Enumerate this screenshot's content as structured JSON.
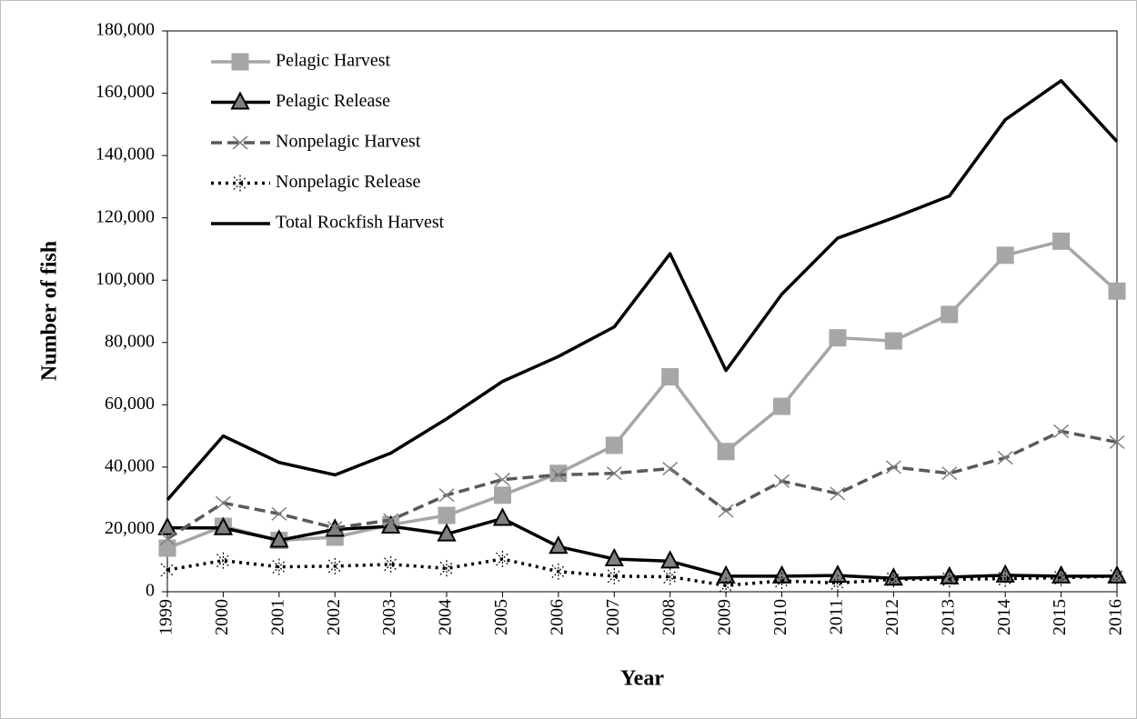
{
  "chart_data": {
    "type": "line",
    "xlabel": "Year",
    "ylabel": "Number of fish",
    "categories": [
      "1999",
      "2000",
      "2001",
      "2002",
      "2003",
      "2004",
      "2005",
      "2006",
      "2007",
      "2008",
      "2009",
      "2010",
      "2011",
      "2012",
      "2013",
      "2014",
      "2015",
      "2016"
    ],
    "ylim": [
      0,
      180000
    ],
    "yticks": [
      0,
      {
        "value": 20000,
        "label": "20,000"
      },
      {
        "value": 40000,
        "label": "40,000"
      },
      {
        "value": 60000,
        "label": "60,000"
      },
      {
        "value": 80000,
        "label": "80,000"
      },
      {
        "value": 100000,
        "label": "100,000"
      },
      {
        "value": 120000,
        "label": "120,000"
      },
      {
        "value": 140000,
        "label": "140,000"
      },
      {
        "value": 160000,
        "label": "160,000"
      },
      {
        "value": 180000,
        "label": "180,000"
      }
    ],
    "grid": false,
    "legend": "upper left",
    "series": [
      {
        "name": "Pelagic Harvest",
        "color": "#a6a6a6",
        "marker": "square",
        "dash": "solid",
        "values": [
          14000,
          21000,
          16500,
          17500,
          21500,
          24500,
          31000,
          38000,
          47000,
          69000,
          45000,
          59500,
          81500,
          80500,
          89000,
          108000,
          112500,
          96500
        ]
      },
      {
        "name": "Pelagic Release",
        "color": "#000000",
        "marker": "triangle",
        "dash": "solid",
        "values": [
          20500,
          20500,
          16500,
          20000,
          21000,
          18500,
          23500,
          14500,
          10500,
          9800,
          5000,
          5000,
          5200,
          4300,
          4700,
          5300,
          5000,
          5000
        ]
      },
      {
        "name": "Nonpelagic Harvest",
        "color": "#595959",
        "marker": "x",
        "dash": "dashed",
        "values": [
          17000,
          28500,
          25000,
          20500,
          23000,
          31000,
          36000,
          37500,
          38000,
          39500,
          26000,
          35500,
          31500,
          40000,
          38000,
          43000,
          51500,
          48000
        ]
      },
      {
        "name": "Nonpelagic Release",
        "color": "#000000",
        "marker": "asterisk",
        "dash": "dotted",
        "values": [
          7000,
          10000,
          8000,
          8200,
          8800,
          7500,
          10500,
          6500,
          5000,
          4800,
          2000,
          3500,
          2800,
          4000,
          4000,
          4200,
          4500,
          5000
        ]
      },
      {
        "name": "Total Rockfish Harvest",
        "color": "#000000",
        "marker": "none",
        "dash": "solid",
        "values": [
          29500,
          50000,
          41500,
          37500,
          44500,
          55500,
          67500,
          75500,
          85000,
          108500,
          71000,
          95500,
          113500,
          120000,
          127000,
          151500,
          164000,
          144500
        ]
      }
    ]
  }
}
